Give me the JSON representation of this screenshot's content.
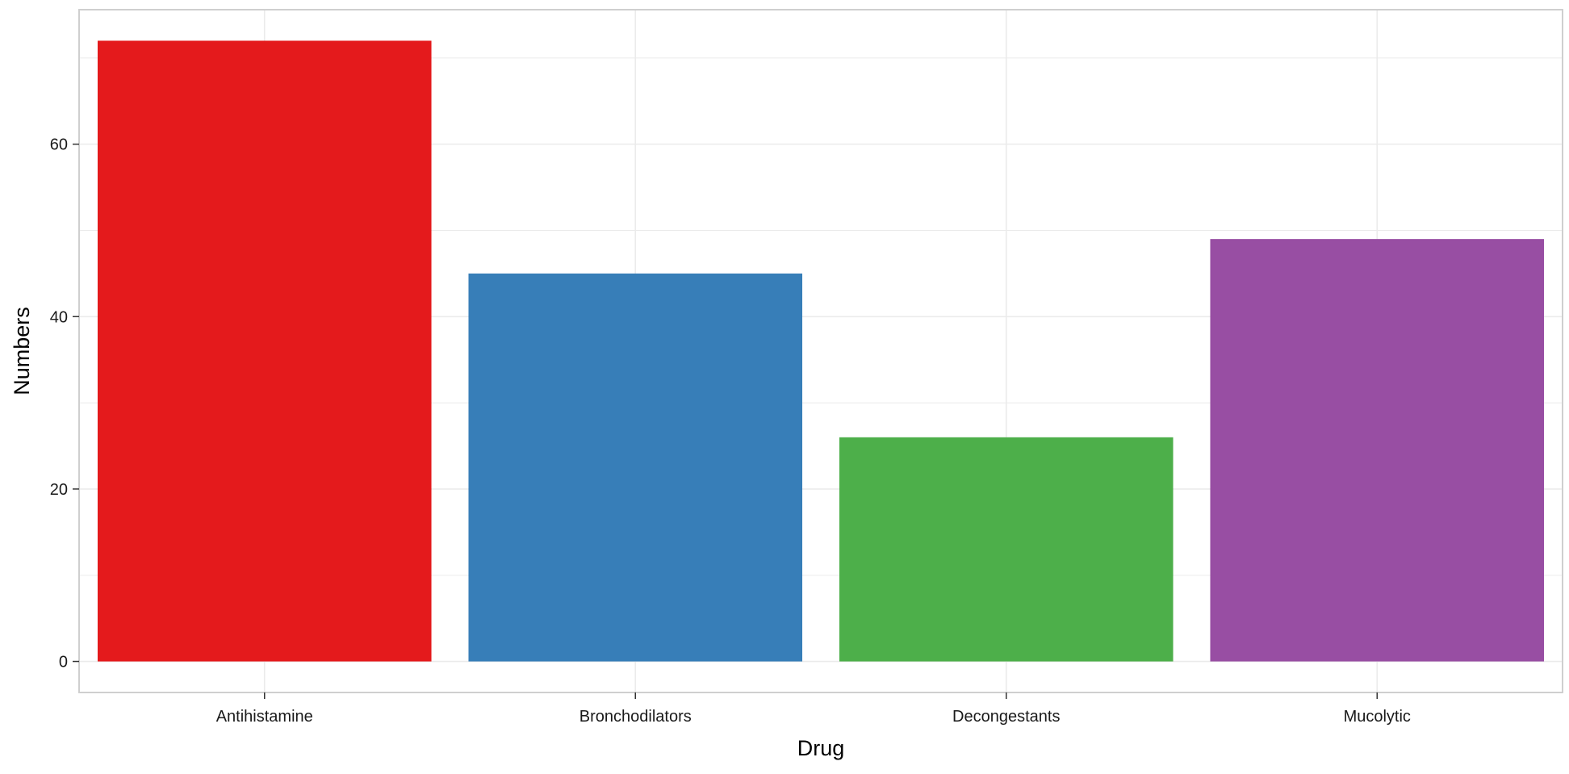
{
  "chart_data": {
    "type": "bar",
    "title": "",
    "xlabel": "Drug",
    "ylabel": "Numbers",
    "categories": [
      "Antihistamine",
      "Bronchodilators",
      "Decongestants",
      "Mucolytic"
    ],
    "values": [
      72,
      45,
      26,
      49
    ],
    "colors": [
      "#e41a1c",
      "#377eb8",
      "#4daf4a",
      "#984ea3"
    ],
    "ylim": [
      -3.6,
      75.6
    ],
    "yticks": [
      0,
      20,
      40,
      60
    ],
    "y_minor_ticks": [
      10,
      30,
      50,
      70
    ],
    "grid": true,
    "legend": "none",
    "style": {
      "panel_background": "#ffffff",
      "panel_border": "#cfcfcf",
      "grid_color": "#ebebeb",
      "tick_color": "#333333"
    }
  }
}
